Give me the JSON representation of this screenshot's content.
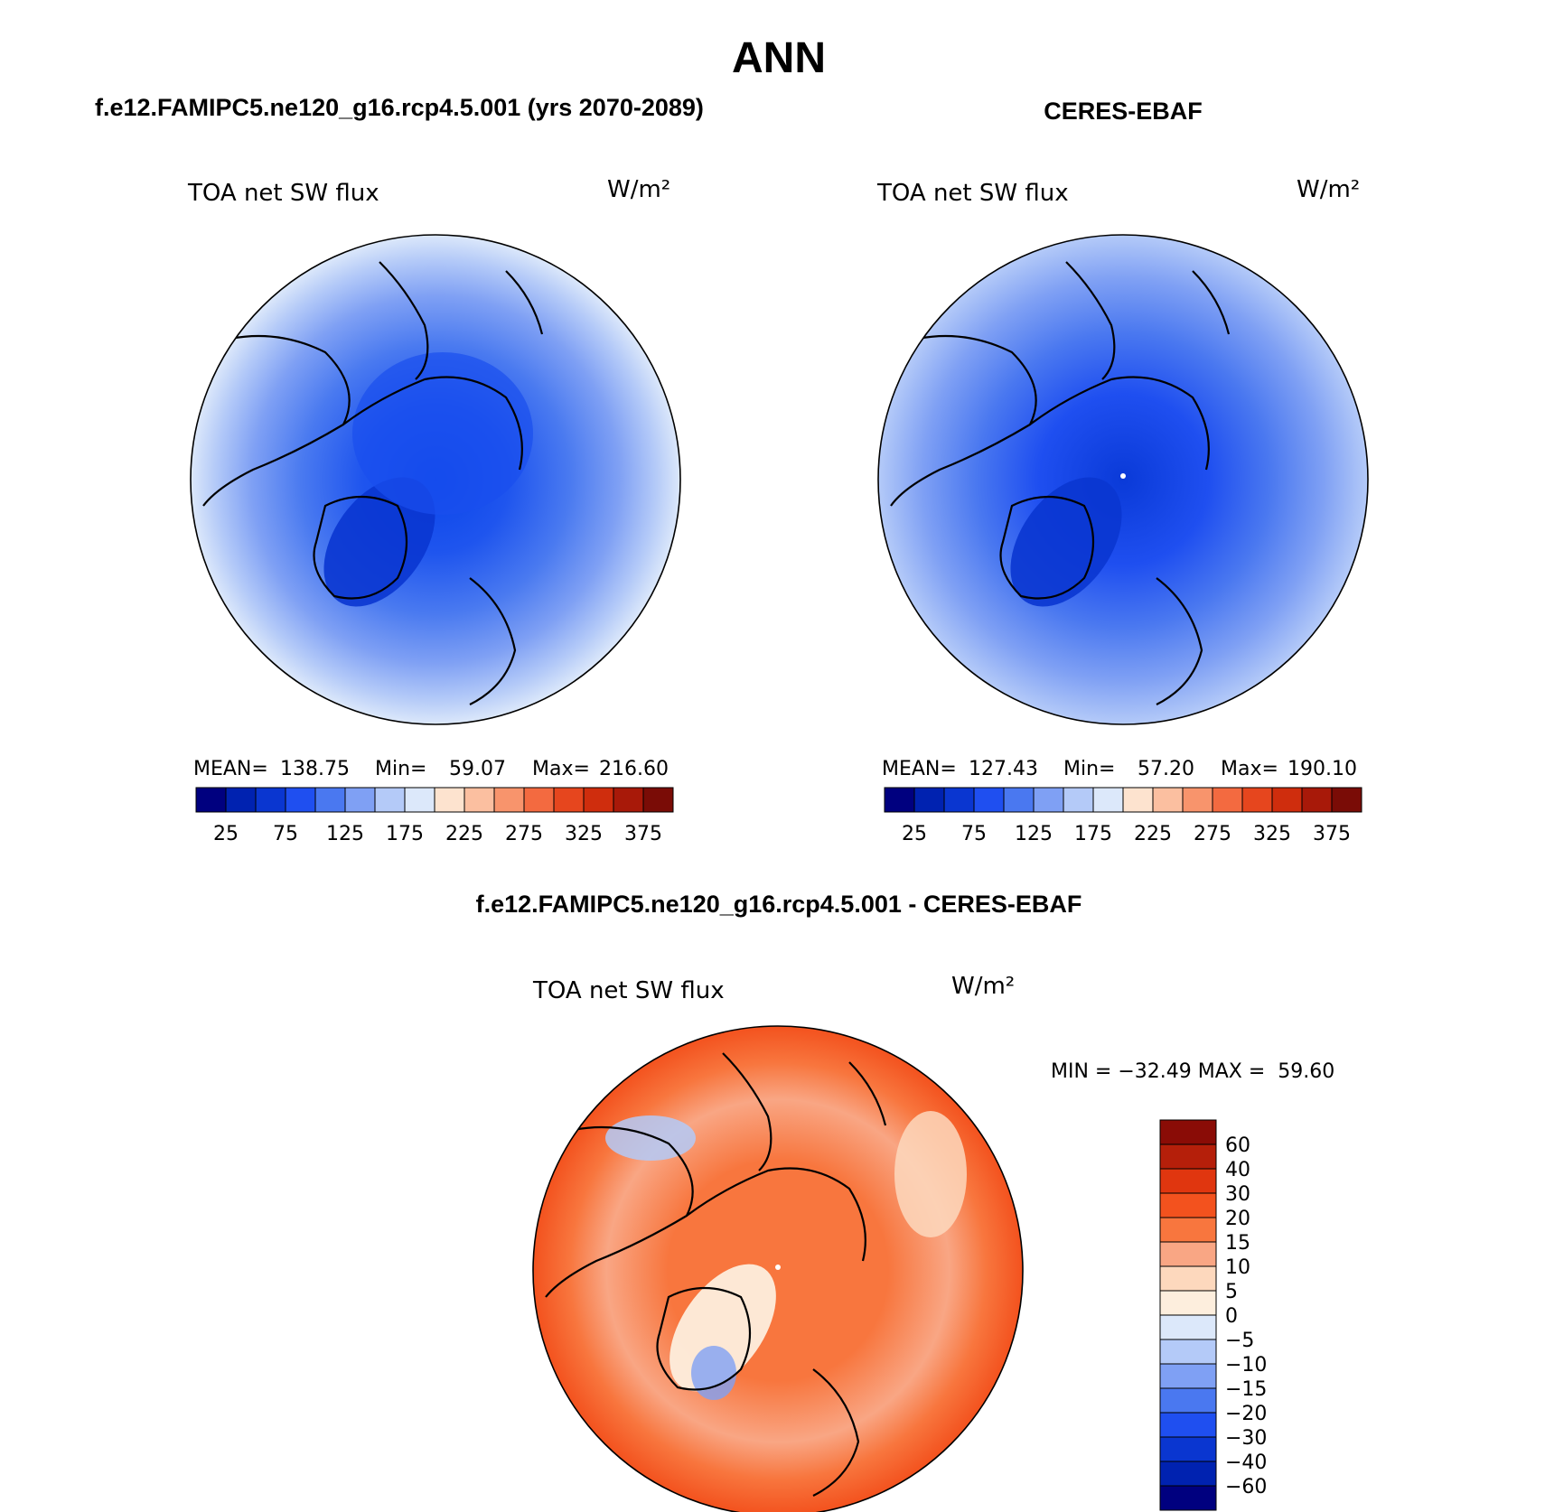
{
  "chart_data": {
    "type": "heatmap",
    "title": "ANN",
    "projection": "north-polar-stereographic",
    "panels": [
      {
        "id": "model",
        "title": "f.e12.FAMIPC5.ne120_g16.rcp4.5.001 (yrs 2070-2089)",
        "variable": "TOA net SW flux",
        "units": "W/m²",
        "stats": {
          "mean_label": "MEAN=",
          "mean": "138.75",
          "min_label": "Min=",
          "min": "59.07",
          "max_label": "Max=",
          "max": "216.60"
        },
        "colorbar": {
          "orientation": "horizontal",
          "tick_labels": [
            "25",
            "75",
            "125",
            "175",
            "225",
            "275",
            "325",
            "375"
          ],
          "colors": [
            "#00007f",
            "#0022b0",
            "#0a36d0",
            "#1f4ff0",
            "#4a78f0",
            "#7fa0f4",
            "#b4caf8",
            "#dce8fa",
            "#fde3cf",
            "#fbbfa0",
            "#f8946c",
            "#f36a40",
            "#e6461e",
            "#cf2d0d",
            "#a81909",
            "#7a0c06"
          ]
        }
      },
      {
        "id": "obs",
        "title": "CERES-EBAF",
        "variable": "TOA net SW flux",
        "units": "W/m²",
        "stats": {
          "mean_label": "MEAN=",
          "mean": "127.43",
          "min_label": "Min=",
          "min": "57.20",
          "max_label": "Max=",
          "max": "190.10"
        },
        "colorbar": {
          "orientation": "horizontal",
          "tick_labels": [
            "25",
            "75",
            "125",
            "175",
            "225",
            "275",
            "325",
            "375"
          ],
          "colors": [
            "#00007f",
            "#0022b0",
            "#0a36d0",
            "#1f4ff0",
            "#4a78f0",
            "#7fa0f4",
            "#b4caf8",
            "#dce8fa",
            "#fde3cf",
            "#fbbfa0",
            "#f8946c",
            "#f36a40",
            "#e6461e",
            "#cf2d0d",
            "#a81909",
            "#7a0c06"
          ]
        }
      },
      {
        "id": "diff",
        "title": "f.e12.FAMIPC5.ne120_g16.rcp4.5.001 - CERES-EBAF",
        "variable": "TOA net SW flux",
        "units": "W/m²",
        "stats_text": "MIN = −32.49 MAX =  59.60",
        "colorbar": {
          "orientation": "vertical",
          "tick_labels": [
            "60",
            "40",
            "30",
            "20",
            "15",
            "10",
            "5",
            "0",
            "−5",
            "−10",
            "−15",
            "−20",
            "−30",
            "−40",
            "−60"
          ],
          "colors": [
            "#8a0c06",
            "#b51f0a",
            "#e0360f",
            "#f3521e",
            "#f8763e",
            "#f9a684",
            "#fdd8bd",
            "#fdeedd",
            "#dce8fa",
            "#b4caf8",
            "#7fa0f4",
            "#4a78f0",
            "#1f4ff0",
            "#0a36d0",
            "#0022b0",
            "#00007f"
          ]
        }
      }
    ]
  }
}
